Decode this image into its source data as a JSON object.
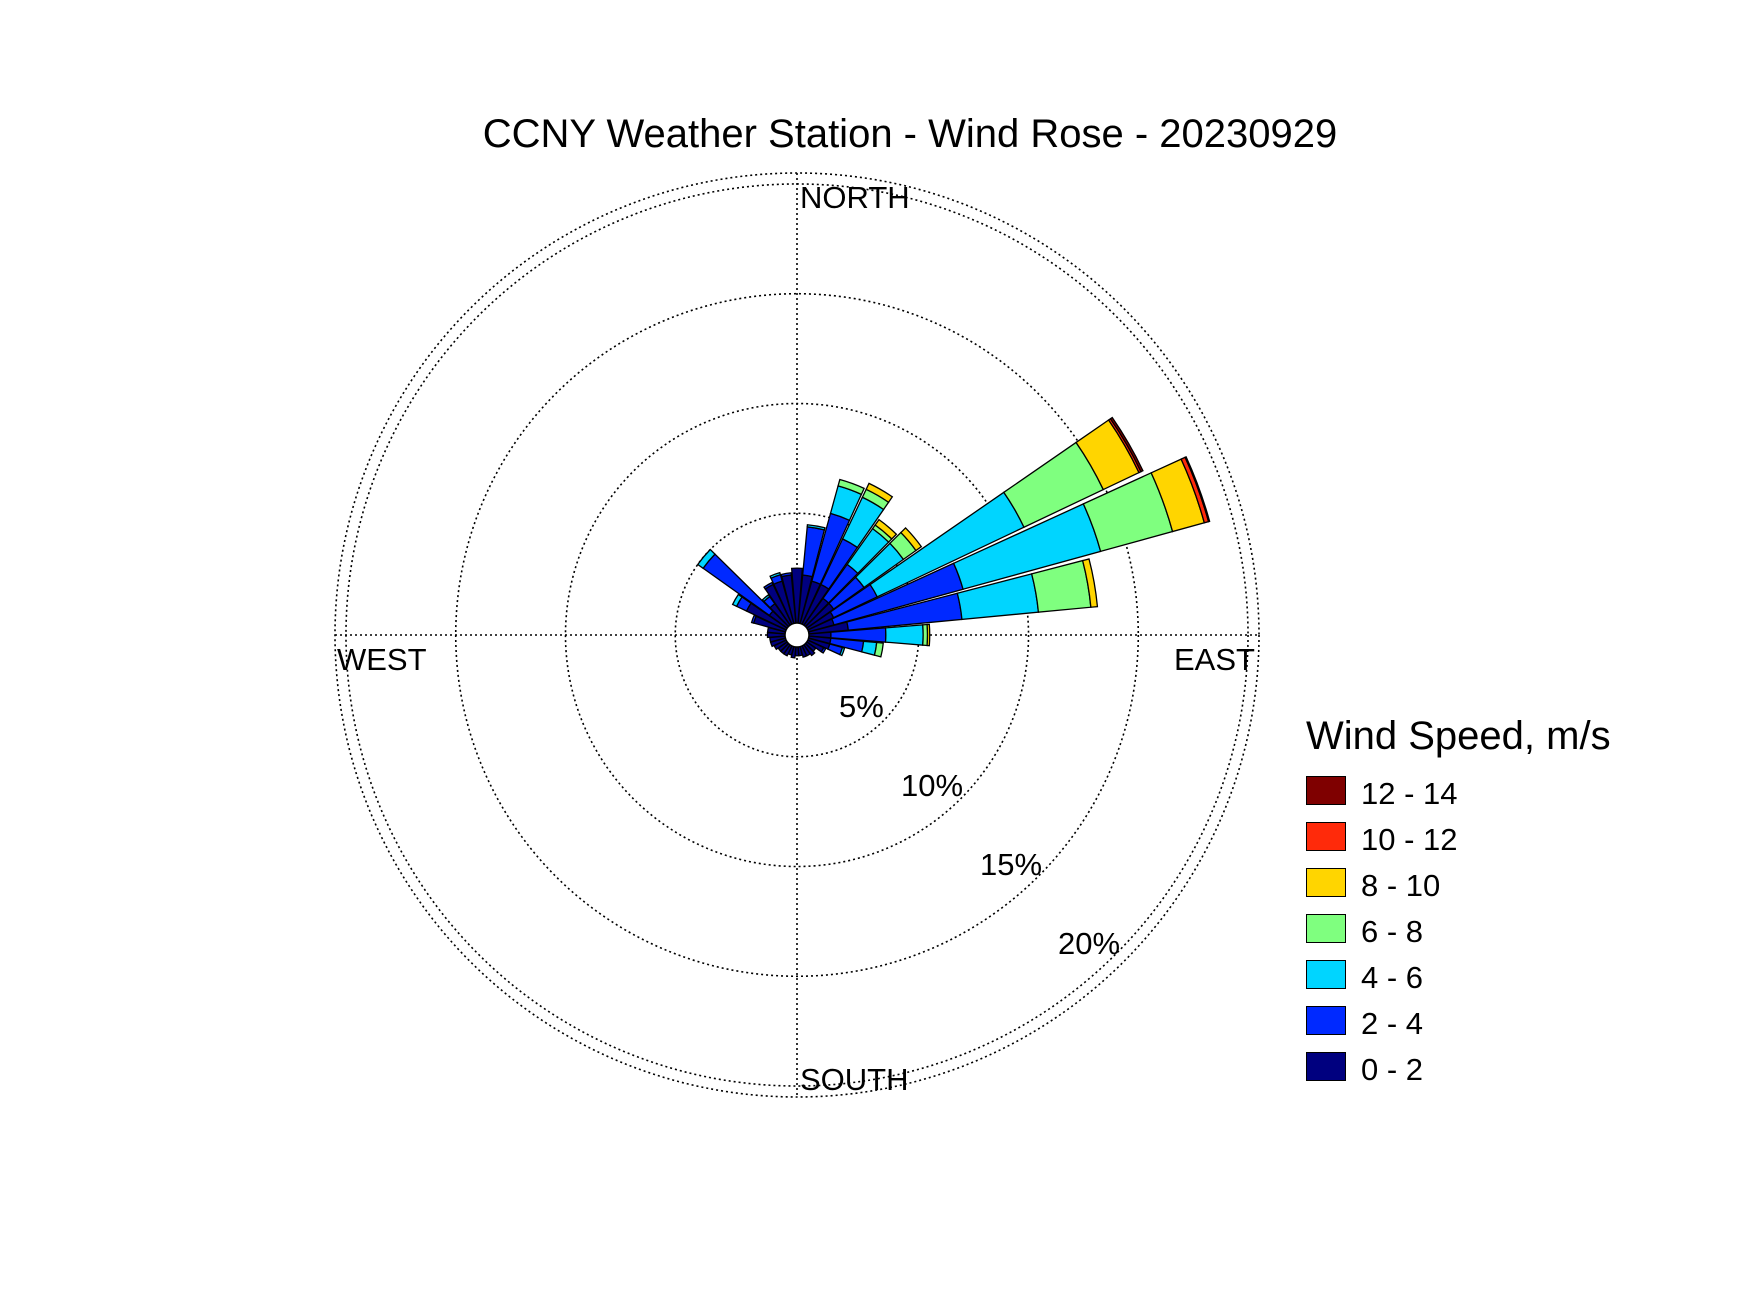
{
  "chart_data": {
    "type": "wind-rose",
    "title": "CCNY Weather Station - Wind Rose - 20230929",
    "directions": {
      "north": "NORTH",
      "south": "SOUTH",
      "east": "EAST",
      "west": "WEST"
    },
    "ring_values": [
      5,
      10,
      15,
      20
    ],
    "ring_labels": [
      "5%",
      "10%",
      "15%",
      "20%"
    ],
    "rmax": 20.5,
    "legend_title": "Wind Speed, m/s",
    "bins": [
      {
        "name": "12 - 14",
        "color": "#7f0000"
      },
      {
        "name": "10 - 12",
        "color": "#ff2a0a"
      },
      {
        "name": "8 - 10",
        "color": "#ffd500"
      },
      {
        "name": "6 - 8",
        "color": "#7fff7f"
      },
      {
        "name": "4 - 6",
        "color": "#00d5ff"
      },
      {
        "name": "2 - 4",
        "color": "#0029ff"
      },
      {
        "name": "0 - 2",
        "color": "#00007f"
      }
    ],
    "sectors": [
      {
        "dir": 0,
        "values": [
          2.5,
          0,
          0,
          0,
          0,
          0,
          0
        ]
      },
      {
        "dir": 10,
        "values": [
          2.2,
          2.2,
          0.1,
          0,
          0,
          0,
          0
        ]
      },
      {
        "dir": 20,
        "values": [
          2.0,
          3.2,
          1.3,
          0.3,
          0,
          0,
          0
        ]
      },
      {
        "dir": 30,
        "values": [
          2.0,
          2.3,
          2.1,
          0.4,
          0.3,
          0,
          0
        ]
      },
      {
        "dir": 40,
        "values": [
          1.5,
          1.9,
          2.0,
          0.2,
          0.3,
          0,
          0
        ]
      },
      {
        "dir": 50,
        "values": [
          1.5,
          1.7,
          2.2,
          0.7,
          0.3,
          0,
          0
        ]
      },
      {
        "dir": 60,
        "values": [
          1.3,
          2.2,
          7.4,
          4.0,
          1.8,
          0.1,
          0.1
        ]
      },
      {
        "dir": 70,
        "values": [
          1.2,
          6.1,
          6.5,
          3.4,
          1.5,
          0.2,
          0.05
        ]
      },
      {
        "dir": 80,
        "values": [
          1.8,
          5.2,
          3.5,
          2.4,
          0.3,
          0,
          0
        ]
      },
      {
        "dir": 90,
        "values": [
          1.0,
          2.5,
          1.7,
          0.2,
          0.1,
          0,
          0
        ]
      },
      {
        "dir": 100,
        "values": [
          1.0,
          1.5,
          0.6,
          0.3,
          0,
          0,
          0
        ]
      },
      {
        "dir": 110,
        "values": [
          1.0,
          0.6,
          0.1,
          0,
          0,
          0,
          0
        ]
      },
      {
        "dir": 120,
        "values": [
          0.8,
          0.1,
          0,
          0,
          0,
          0,
          0
        ]
      },
      {
        "dir": 130,
        "values": [
          0.5,
          0,
          0,
          0,
          0,
          0,
          0
        ]
      },
      {
        "dir": 140,
        "values": [
          0.6,
          0,
          0,
          0,
          0,
          0,
          0
        ]
      },
      {
        "dir": 150,
        "values": [
          0.5,
          0,
          0,
          0,
          0,
          0,
          0
        ]
      },
      {
        "dir": 160,
        "values": [
          0.5,
          0,
          0,
          0,
          0,
          0,
          0
        ]
      },
      {
        "dir": 170,
        "values": [
          0.4,
          0,
          0,
          0,
          0,
          0,
          0
        ]
      },
      {
        "dir": 180,
        "values": [
          0.4,
          0,
          0,
          0,
          0,
          0,
          0
        ]
      },
      {
        "dir": 190,
        "values": [
          0.5,
          0,
          0,
          0,
          0,
          0,
          0
        ]
      },
      {
        "dir": 200,
        "values": [
          0.4,
          0,
          0,
          0,
          0,
          0,
          0
        ]
      },
      {
        "dir": 210,
        "values": [
          0.5,
          0,
          0,
          0,
          0,
          0,
          0
        ]
      },
      {
        "dir": 220,
        "values": [
          0.5,
          0,
          0,
          0,
          0,
          0,
          0
        ]
      },
      {
        "dir": 230,
        "values": [
          0.5,
          0,
          0,
          0,
          0,
          0,
          0
        ]
      },
      {
        "dir": 240,
        "values": [
          0.6,
          0,
          0,
          0,
          0,
          0,
          0
        ]
      },
      {
        "dir": 250,
        "values": [
          0.7,
          0,
          0,
          0,
          0,
          0,
          0
        ]
      },
      {
        "dir": 260,
        "values": [
          0.7,
          0,
          0,
          0,
          0,
          0,
          0
        ]
      },
      {
        "dir": 270,
        "values": [
          0.8,
          0,
          0,
          0,
          0,
          0,
          0
        ]
      },
      {
        "dir": 280,
        "values": [
          0.8,
          0,
          0,
          0,
          0,
          0,
          0
        ]
      },
      {
        "dir": 290,
        "values": [
          1.5,
          0.1,
          0,
          0,
          0,
          0,
          0
        ]
      },
      {
        "dir": 300,
        "values": [
          2.0,
          0.5,
          0.2,
          0,
          0,
          0,
          0
        ]
      },
      {
        "dir": 310,
        "values": [
          1.0,
          3.7,
          0.3,
          0,
          0,
          0,
          0
        ]
      },
      {
        "dir": 320,
        "values": [
          1.2,
          0.4,
          0.1,
          0,
          0,
          0,
          0
        ]
      },
      {
        "dir": 330,
        "values": [
          2.0,
          0.1,
          0,
          0,
          0,
          0,
          0
        ]
      },
      {
        "dir": 340,
        "values": [
          2.0,
          0.3,
          0.1,
          0,
          0,
          0,
          0
        ]
      },
      {
        "dir": 350,
        "values": [
          2.2,
          0.1,
          0,
          0,
          0,
          0,
          0
        ]
      }
    ]
  }
}
